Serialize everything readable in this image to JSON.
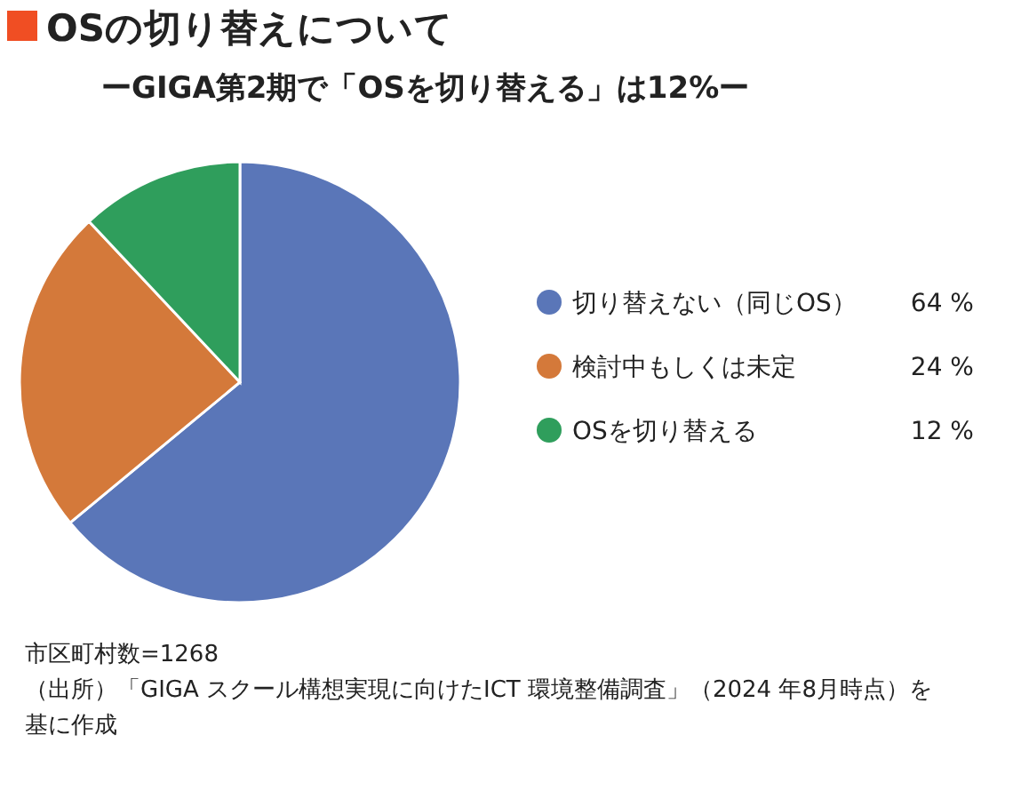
{
  "chart_data": {
    "type": "pie",
    "title": "OSの切り替えについて",
    "subtitle": "ーGIGA第2期で「OSを切り替える」は12%ー",
    "categories": [
      "切り替えない（同じOS）",
      "検討中もしくは未定",
      "OSを切り替える"
    ],
    "values": [
      64,
      24,
      12
    ],
    "colors": [
      "#5a76b8",
      "#d4793a",
      "#2f9e5c"
    ],
    "value_labels": [
      "64 %",
      "24 %",
      "12 %"
    ],
    "legend": "right",
    "annotations": [
      "市区町村数=1268",
      "（出所）「GIGA スクール構想実現に向けたICT 環境整備調査」（2024 年8月時点）を基に作成"
    ]
  }
}
